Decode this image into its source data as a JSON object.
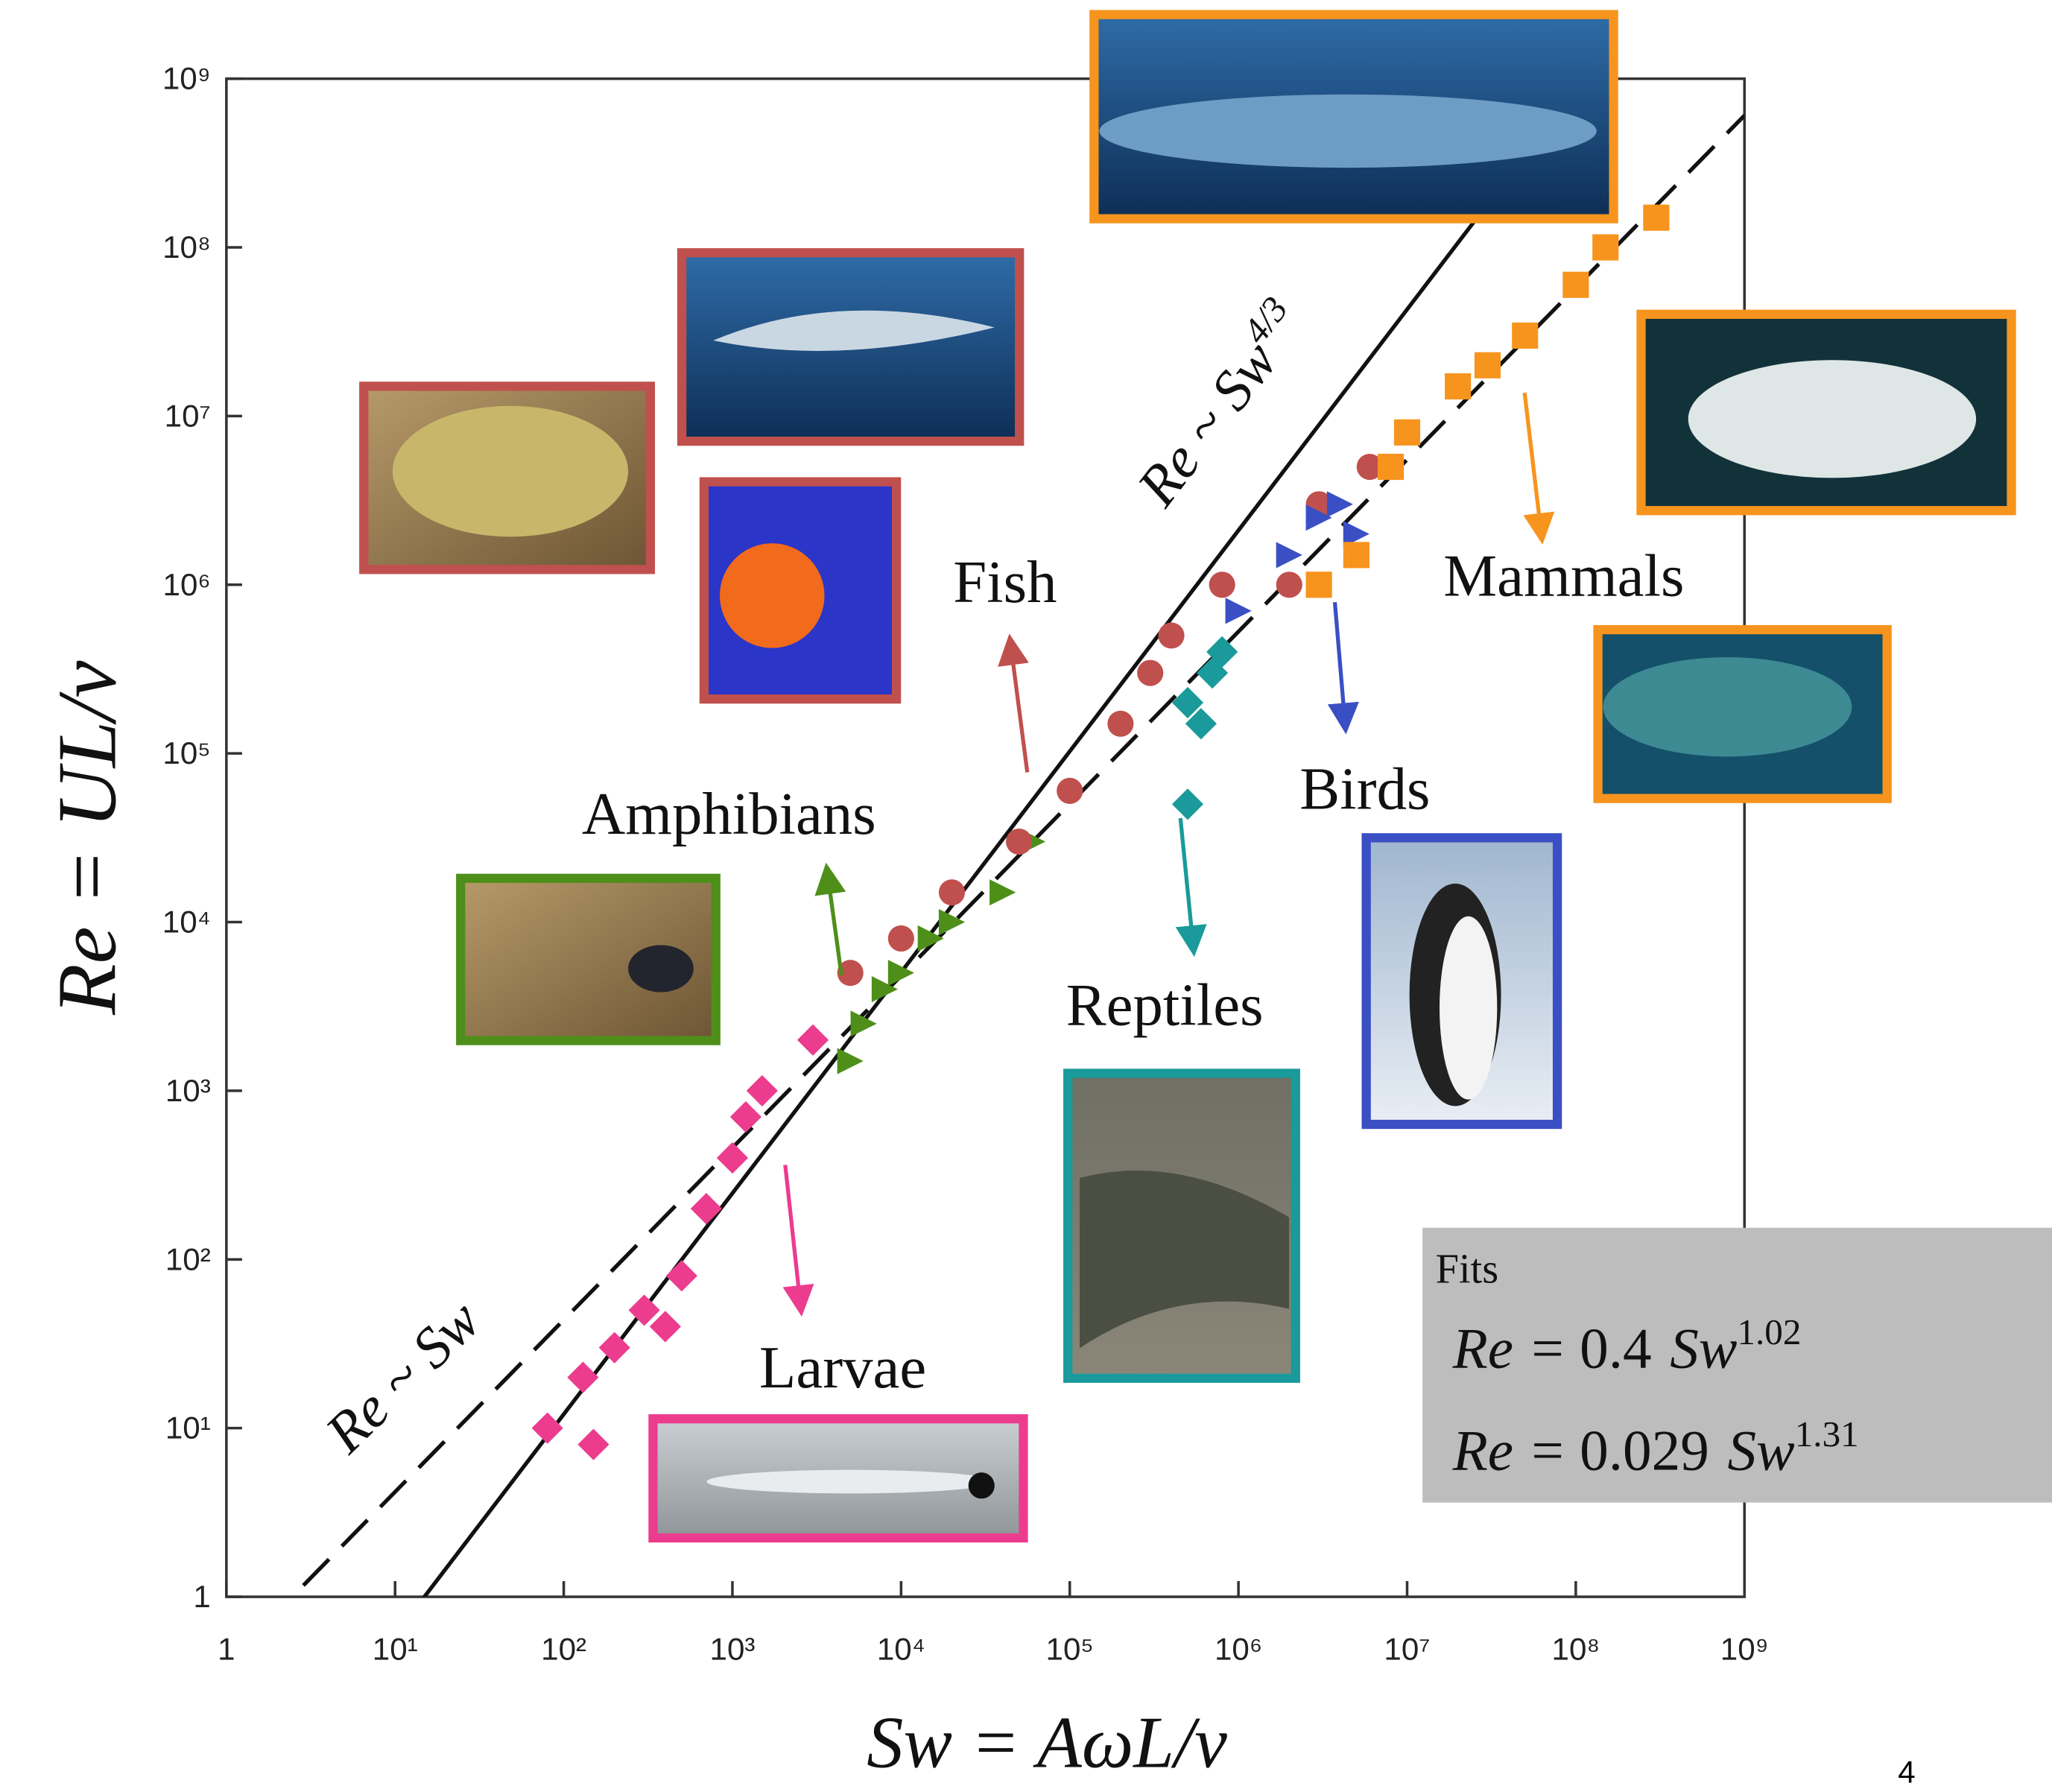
{
  "chart_data": {
    "type": "scatter",
    "x_label": "Sw = AωL/ν",
    "y_label": "Re = UL/ν",
    "log_x": true,
    "log_y": true,
    "xlim": [
      1,
      1000000000
    ],
    "ylim": [
      1,
      1000000000
    ],
    "xticks": [
      1,
      {
        "value": 10,
        "label": "10¹"
      },
      {
        "value": 100,
        "label": "10²"
      },
      {
        "value": 1000,
        "label": "10³"
      },
      {
        "value": 10000,
        "label": "10⁴"
      },
      {
        "value": 100000,
        "label": "10⁵"
      },
      {
        "value": 1000000,
        "label": "10⁶"
      },
      {
        "value": 10000000,
        "label": "10⁷"
      },
      {
        "value": 100000000,
        "label": "10⁸"
      },
      {
        "value": 1000000000,
        "label": "10⁹"
      }
    ],
    "yticks": [
      1,
      {
        "value": 10,
        "label": "10¹"
      },
      {
        "value": 100,
        "label": "10²"
      },
      {
        "value": 1000,
        "label": "10³"
      },
      {
        "value": 10000,
        "label": "10⁴"
      },
      {
        "value": 100000,
        "label": "10⁵"
      },
      {
        "value": 1000000,
        "label": "10⁶"
      },
      {
        "value": 10000000,
        "label": "10⁷"
      },
      {
        "value": 100000000,
        "label": "10⁸"
      },
      {
        "value": 1000000000,
        "label": "10⁹"
      }
    ],
    "series": [
      {
        "name": "Larvae",
        "color": "#ec3c8e",
        "marker": "diamond",
        "x": [
          80,
          150,
          130,
          200,
          300,
          400,
          500,
          700,
          1000,
          1200,
          1500,
          3000
        ],
        "y": [
          10,
          8,
          20,
          30,
          50,
          40,
          80,
          200,
          400,
          700,
          1000,
          2000
        ]
      },
      {
        "name": "Amphibians",
        "color": "#4e8f1a",
        "marker": "triangle",
        "x": [
          5000,
          6000,
          8000,
          10000,
          15000,
          20000,
          40000,
          60000
        ],
        "y": [
          1500,
          2500,
          4000,
          5000,
          8000,
          10000,
          15000,
          30000
        ]
      },
      {
        "name": "Fish",
        "color": "#c0504d",
        "marker": "circle",
        "x": [
          5000,
          10000,
          20000,
          50000,
          100000,
          200000,
          300000,
          400000,
          800000,
          2000000,
          3000000,
          6000000,
          10000000
        ],
        "y": [
          5000,
          8000,
          15000,
          30000,
          60000,
          150000,
          300000,
          500000,
          1000000,
          1000000,
          3000000,
          5000000,
          8000000
        ]
      },
      {
        "name": "Reptiles",
        "color": "#1a9a9a",
        "marker": "diamond",
        "x": [
          500000,
          600000,
          700000,
          500000,
          800000
        ],
        "y": [
          200000,
          150000,
          300000,
          50000,
          400000
        ]
      },
      {
        "name": "Birds",
        "color": "#3a4fc4",
        "marker": "triangle",
        "x": [
          1000000,
          2000000,
          3000000,
          4000000,
          5000000
        ],
        "y": [
          700000,
          1500000,
          2500000,
          3000000,
          2000000
        ]
      },
      {
        "name": "Mammals",
        "color": "#f7941d",
        "marker": "square",
        "x": [
          3000000,
          5000000,
          8000000,
          10000000,
          20000000,
          30000000,
          50000000,
          100000000,
          150000000,
          300000000
        ],
        "y": [
          1000000,
          1500000,
          5000000,
          8000000,
          15000000,
          20000000,
          30000000,
          60000000,
          100000000,
          150000000
        ]
      }
    ],
    "fits_title": "Fits",
    "fits": [
      {
        "lhs": "Re =",
        "coefficient": 0.4,
        "variable": "Sw",
        "exponent": 1.02,
        "dashed": true,
        "line_label": "Re ~ Sw"
      },
      {
        "lhs": "Re =",
        "coefficient": 0.029,
        "variable": "Sw",
        "exponent": 1.31,
        "dashed": false,
        "line_label": "Re ~ Sw",
        "line_label_exponent": "4/3"
      }
    ],
    "page_number": 4
  }
}
